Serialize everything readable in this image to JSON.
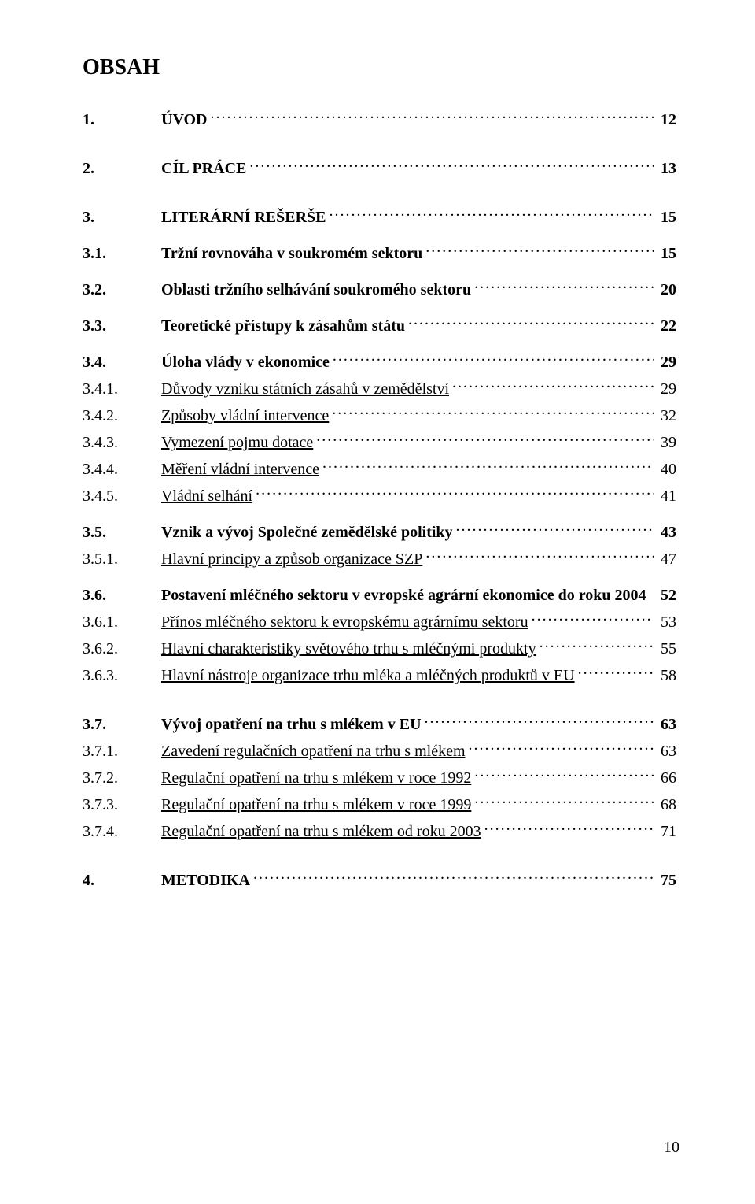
{
  "title": "OBSAH",
  "page_number": "10",
  "entries": [
    {
      "num": "1.",
      "label": "ÚVOD",
      "page": "12",
      "bold": true,
      "level": 0,
      "gap": "lg",
      "dots": true
    },
    {
      "num": "2.",
      "label": "CÍL PRÁCE",
      "page": "13",
      "bold": true,
      "level": 0,
      "gap": "lg",
      "dots": true
    },
    {
      "num": "3.",
      "label": "LITERÁRNÍ REŠERŠE",
      "page": "15",
      "bold": true,
      "level": 0,
      "gap": "lg",
      "dots": true
    },
    {
      "num": "3.1.",
      "label": "Tržní rovnováha v soukromém sektoru",
      "page": "15",
      "bold": true,
      "level": 1,
      "gap": "md",
      "dots": true
    },
    {
      "num": "3.2.",
      "label": "Oblasti tržního selhávání soukromého sektoru",
      "page": "20",
      "bold": true,
      "level": 1,
      "gap": "md",
      "dots": true
    },
    {
      "num": "3.3.",
      "label": "Teoretické přístupy k zásahům státu",
      "page": "22",
      "bold": true,
      "level": 1,
      "gap": "md",
      "dots": true
    },
    {
      "num": "3.4.",
      "label": "Úloha vlády v ekonomice",
      "page": "29",
      "bold": true,
      "level": 1,
      "gap": "md",
      "dots": true
    },
    {
      "num": "3.4.1.",
      "label": "Důvody vzniku státních zásahů v zemědělství",
      "page": "29",
      "bold": false,
      "level": 2,
      "gap": "sm",
      "dots": true,
      "underline": true
    },
    {
      "num": "3.4.2.",
      "label": "Způsoby vládní intervence",
      "page": "32",
      "bold": false,
      "level": 2,
      "gap": "sm",
      "dots": true,
      "underline": true
    },
    {
      "num": "3.4.3.",
      "label": "Vymezení pojmu dotace",
      "page": "39",
      "bold": false,
      "level": 2,
      "gap": "sm",
      "dots": true,
      "underline": true
    },
    {
      "num": "3.4.4.",
      "label": "Měření vládní intervence",
      "page": "40",
      "bold": false,
      "level": 2,
      "gap": "sm",
      "dots": true,
      "underline": true
    },
    {
      "num": "3.4.5.",
      "label": "Vládní selhání",
      "page": "41",
      "bold": false,
      "level": 2,
      "gap": "sm",
      "dots": true,
      "underline": true
    },
    {
      "num": "3.5.",
      "label": "Vznik a vývoj Společné zemědělské politiky",
      "page": "43",
      "bold": true,
      "level": 1,
      "gap": "md",
      "dots": true
    },
    {
      "num": "3.5.1.",
      "label": "Hlavní principy a způsob organizace SZP",
      "page": "47",
      "bold": false,
      "level": 2,
      "gap": "sm",
      "dots": true,
      "underline": true
    },
    {
      "num": "3.6.",
      "label": "Postavení mléčného sektoru v evropské agrární ekonomice do roku 2004",
      "page": "52",
      "bold": true,
      "level": 1,
      "gap": "md",
      "dots": false
    },
    {
      "num": "3.6.1.",
      "label": "Přínos mléčného sektoru k evropskému agrárnímu sektoru",
      "page": "53",
      "bold": false,
      "level": 2,
      "gap": "sm",
      "dots": true,
      "underline": true
    },
    {
      "num": "3.6.2.",
      "label": "Hlavní charakteristiky světového trhu s mléčnými produkty",
      "page": "55",
      "bold": false,
      "level": 2,
      "gap": "sm",
      "dots": true,
      "underline": true
    },
    {
      "num": "3.6.3.",
      "label": "Hlavní nástroje organizace trhu mléka a mléčných produktů v EU",
      "page": "58",
      "bold": false,
      "level": 2,
      "gap": "sm",
      "dots": true,
      "underline": true
    },
    {
      "num": "3.7.",
      "label": "Vývoj opatření na trhu s mlékem v EU",
      "page": "63",
      "bold": true,
      "level": 1,
      "gap": "lg",
      "dots": true
    },
    {
      "num": "3.7.1.",
      "label": "Zavedení regulačních opatření na trhu s mlékem",
      "page": "63",
      "bold": false,
      "level": 2,
      "gap": "sm",
      "dots": true,
      "underline": true
    },
    {
      "num": "3.7.2.",
      "label": "Regulační opatření na trhu s mlékem v roce 1992",
      "page": "66",
      "bold": false,
      "level": 2,
      "gap": "sm",
      "dots": true,
      "underline": true
    },
    {
      "num": "3.7.3.",
      "label": "Regulační opatření na trhu s mlékem v roce 1999",
      "page": "68",
      "bold": false,
      "level": 2,
      "gap": "sm",
      "dots": true,
      "underline": true
    },
    {
      "num": "3.7.4.",
      "label": "Regulační opatření na trhu s mlékem od roku 2003",
      "page": "71",
      "bold": false,
      "level": 2,
      "gap": "sm",
      "dots": true,
      "underline": true
    },
    {
      "num": "4.",
      "label": "METODIKA",
      "page": "75",
      "bold": true,
      "level": 0,
      "gap": "lg",
      "dots": true
    }
  ]
}
